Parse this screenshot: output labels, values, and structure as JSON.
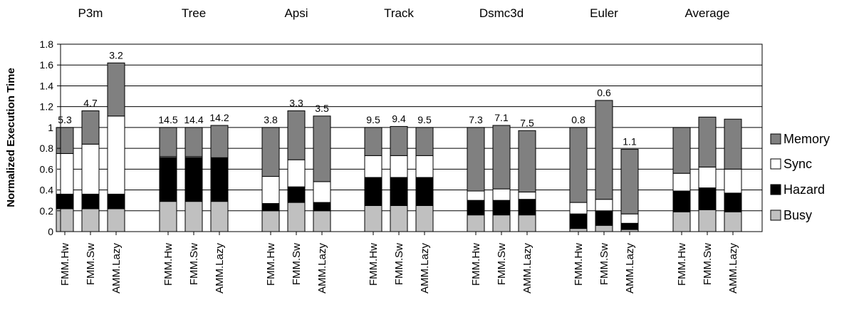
{
  "chart_data": {
    "type": "bar",
    "stacked": true,
    "ylabel": "Normalized Execution Time",
    "xlabel": "",
    "ylim": [
      0,
      1.8
    ],
    "yticks": [
      "0",
      "0.2",
      "0.4",
      "0.6",
      "0.8",
      "1",
      "1.2",
      "1.4",
      "1.6",
      "1.8"
    ],
    "grid": true,
    "legend_position": "right",
    "legend": [
      {
        "name": "Memory",
        "color": "#808080"
      },
      {
        "name": "Sync",
        "color": "#ffffff"
      },
      {
        "name": "Hazard",
        "color": "#000000"
      },
      {
        "name": "Busy",
        "color": "#c0c0c0"
      }
    ],
    "groups": [
      {
        "name": "P3m",
        "bars": [
          {
            "label": "FMM.Hw",
            "busy": 0.22,
            "hazard": 0.14,
            "sync": 0.39,
            "memory": 0.25,
            "top_label": "5.3"
          },
          {
            "label": "FMM.Sw",
            "busy": 0.22,
            "hazard": 0.14,
            "sync": 0.48,
            "memory": 0.32,
            "top_label": "4.7"
          },
          {
            "label": "AMM.Lazy",
            "busy": 0.22,
            "hazard": 0.14,
            "sync": 0.75,
            "memory": 0.51,
            "top_label": "3.2"
          }
        ]
      },
      {
        "name": "Tree",
        "bars": [
          {
            "label": "FMM.Hw",
            "busy": 0.29,
            "hazard": 0.42,
            "sync": 0.01,
            "memory": 0.28,
            "top_label": "14.5"
          },
          {
            "label": "FMM.Sw",
            "busy": 0.29,
            "hazard": 0.42,
            "sync": 0.01,
            "memory": 0.28,
            "top_label": "14.4"
          },
          {
            "label": "AMM.Lazy",
            "busy": 0.29,
            "hazard": 0.42,
            "sync": 0.0,
            "memory": 0.31,
            "top_label": "14.2"
          }
        ]
      },
      {
        "name": "Apsi",
        "bars": [
          {
            "label": "FMM.Hw",
            "busy": 0.2,
            "hazard": 0.07,
            "sync": 0.26,
            "memory": 0.47,
            "top_label": "3.8"
          },
          {
            "label": "FMM.Sw",
            "busy": 0.28,
            "hazard": 0.15,
            "sync": 0.26,
            "memory": 0.47,
            "top_label": "3.3"
          },
          {
            "label": "AMM.Lazy",
            "busy": 0.2,
            "hazard": 0.08,
            "sync": 0.2,
            "memory": 0.63,
            "top_label": "3.5"
          }
        ]
      },
      {
        "name": "Track",
        "bars": [
          {
            "label": "FMM.Hw",
            "busy": 0.25,
            "hazard": 0.27,
            "sync": 0.21,
            "memory": 0.27,
            "top_label": "9.5"
          },
          {
            "label": "FMM.Sw",
            "busy": 0.25,
            "hazard": 0.27,
            "sync": 0.21,
            "memory": 0.28,
            "top_label": "9.4"
          },
          {
            "label": "AMM.Lazy",
            "busy": 0.25,
            "hazard": 0.27,
            "sync": 0.21,
            "memory": 0.27,
            "top_label": "9.5"
          }
        ]
      },
      {
        "name": "Dsmc3d",
        "bars": [
          {
            "label": "FMM.Hw",
            "busy": 0.16,
            "hazard": 0.14,
            "sync": 0.09,
            "memory": 0.61,
            "top_label": "7.3"
          },
          {
            "label": "FMM.Sw",
            "busy": 0.16,
            "hazard": 0.14,
            "sync": 0.11,
            "memory": 0.61,
            "top_label": "7.1"
          },
          {
            "label": "AMM.Lazy",
            "busy": 0.16,
            "hazard": 0.15,
            "sync": 0.07,
            "memory": 0.59,
            "top_label": "7.5"
          }
        ]
      },
      {
        "name": "Euler",
        "bars": [
          {
            "label": "FMM.Hw",
            "busy": 0.03,
            "hazard": 0.14,
            "sync": 0.11,
            "memory": 0.72,
            "top_label": "0.8"
          },
          {
            "label": "FMM.Sw",
            "busy": 0.06,
            "hazard": 0.14,
            "sync": 0.11,
            "memory": 0.95,
            "top_label": "0.6"
          },
          {
            "label": "AMM.Lazy",
            "busy": 0.02,
            "hazard": 0.06,
            "sync": 0.09,
            "memory": 0.62,
            "top_label": "1.1"
          }
        ]
      },
      {
        "name": "Average",
        "bars": [
          {
            "label": "FMM.Hw",
            "busy": 0.19,
            "hazard": 0.2,
            "sync": 0.17,
            "memory": 0.44,
            "top_label": ""
          },
          {
            "label": "FMM.Sw",
            "busy": 0.21,
            "hazard": 0.21,
            "sync": 0.2,
            "memory": 0.48,
            "top_label": ""
          },
          {
            "label": "AMM.Lazy",
            "busy": 0.19,
            "hazard": 0.18,
            "sync": 0.23,
            "memory": 0.48,
            "top_label": ""
          }
        ]
      }
    ]
  }
}
